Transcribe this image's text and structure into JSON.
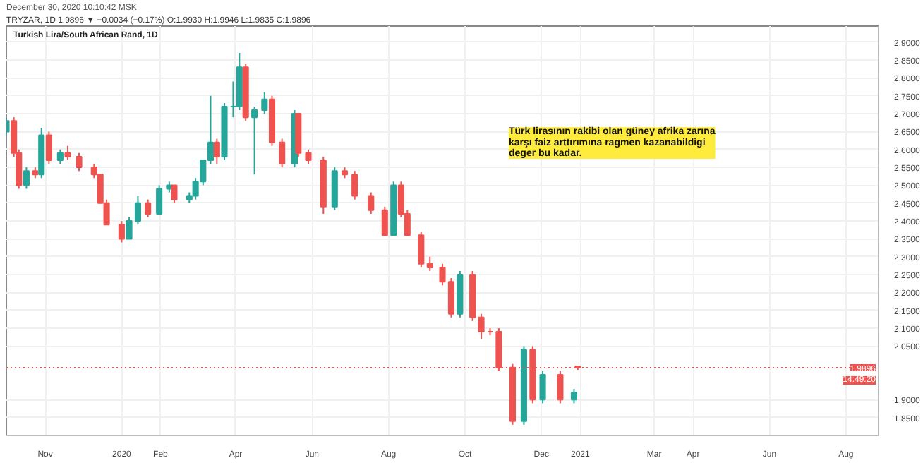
{
  "chart_data": {
    "type": "candlestick",
    "title": "Turkish Lira/South African Rand, 1D",
    "annotations": [
      "December 30, 2020 10:10:42 MSK",
      "TRYZAR, 1D 1.9896 ▼ −0.0034 (−0.17%) O:1.9930 H:1.9946 L:1.9835 C:1.9896",
      "Türk lirasının rakibi olan güney afrika zarına\nkarşı faiz arttırımına ragmen kazanabildigi\ndeger bu kadar.",
      "14:49:20"
    ],
    "x": [
      "2019-10-01",
      "2019-10-07",
      "2019-10-11",
      "2019-10-17",
      "2019-10-24",
      "2019-10-29",
      "2019-11-04",
      "2019-11-13",
      "2019-11-19",
      "2019-11-28",
      "2019-12-10",
      "2019-12-15",
      "2019-12-20",
      "2020-01-01",
      "2020-01-07",
      "2020-01-14",
      "2020-01-22",
      "2020-01-31",
      "2020-02-08",
      "2020-02-12",
      "2020-02-24",
      "2020-02-29",
      "2020-03-06",
      "2020-03-12",
      "2020-03-17",
      "2020-03-23",
      "2020-03-30",
      "2020-04-04",
      "2020-04-09",
      "2020-04-16",
      "2020-04-24",
      "2020-04-30",
      "2020-05-08",
      "2020-05-18",
      "2020-05-21",
      "2020-05-29",
      "2020-06-10",
      "2020-06-19",
      "2020-06-27",
      "2020-07-05",
      "2020-07-18",
      "2020-07-29",
      "2020-08-05",
      "2020-08-11",
      "2020-08-16",
      "2020-08-27",
      "2020-09-03",
      "2020-09-13",
      "2020-09-20",
      "2020-09-27",
      "2020-10-07",
      "2020-10-14",
      "2020-10-21",
      "2020-10-28",
      "2020-11-08",
      "2020-11-17",
      "2020-11-24",
      "2020-12-02",
      "2020-12-16",
      "2020-12-27",
      "2020-12-30"
    ],
    "ohlc": [
      [
        2.65,
        2.69,
        2.64,
        2.68
      ],
      [
        2.68,
        2.69,
        2.58,
        2.59
      ],
      [
        2.59,
        2.6,
        2.49,
        2.5
      ],
      [
        2.5,
        2.55,
        2.49,
        2.54
      ],
      [
        2.54,
        2.55,
        2.52,
        2.53
      ],
      [
        2.53,
        2.66,
        2.52,
        2.64
      ],
      [
        2.64,
        2.65,
        2.56,
        2.57
      ],
      [
        2.57,
        2.6,
        2.56,
        2.59
      ],
      [
        2.59,
        2.61,
        2.57,
        2.58
      ],
      [
        2.58,
        2.59,
        2.54,
        2.55
      ],
      [
        2.55,
        2.56,
        2.52,
        2.53
      ],
      [
        2.53,
        2.53,
        2.45,
        2.45
      ],
      [
        2.45,
        2.46,
        2.39,
        2.39
      ],
      [
        2.39,
        2.4,
        2.34,
        2.35
      ],
      [
        2.35,
        2.41,
        2.35,
        2.4
      ],
      [
        2.4,
        2.47,
        2.39,
        2.45
      ],
      [
        2.45,
        2.46,
        2.41,
        2.42
      ],
      [
        2.42,
        2.5,
        2.42,
        2.49
      ],
      [
        2.49,
        2.51,
        2.48,
        2.5
      ],
      [
        2.5,
        2.5,
        2.45,
        2.46
      ],
      [
        2.46,
        2.48,
        2.45,
        2.47
      ],
      [
        2.47,
        2.52,
        2.46,
        2.51
      ],
      [
        2.51,
        2.57,
        2.5,
        2.57
      ],
      [
        2.57,
        2.75,
        2.56,
        2.62
      ],
      [
        2.62,
        2.63,
        2.56,
        2.58
      ],
      [
        2.58,
        2.73,
        2.57,
        2.72
      ],
      [
        2.72,
        2.79,
        2.69,
        2.72
      ],
      [
        2.72,
        2.87,
        2.71,
        2.83
      ],
      [
        2.83,
        2.84,
        2.68,
        2.69
      ],
      [
        2.69,
        2.72,
        2.53,
        2.71
      ],
      [
        2.71,
        2.76,
        2.7,
        2.74
      ],
      [
        2.74,
        2.75,
        2.61,
        2.62
      ],
      [
        2.62,
        2.63,
        2.55,
        2.56
      ],
      [
        2.56,
        2.71,
        2.55,
        2.7
      ],
      [
        2.7,
        2.7,
        2.58,
        2.59
      ],
      [
        2.59,
        2.6,
        2.56,
        2.57
      ],
      [
        2.57,
        2.58,
        2.42,
        2.44
      ],
      [
        2.44,
        2.55,
        2.43,
        2.54
      ],
      [
        2.54,
        2.55,
        2.52,
        2.53
      ],
      [
        2.53,
        2.54,
        2.46,
        2.47
      ],
      [
        2.47,
        2.48,
        2.42,
        2.43
      ],
      [
        2.43,
        2.44,
        2.36,
        2.36
      ],
      [
        2.36,
        2.51,
        2.36,
        2.5
      ],
      [
        2.5,
        2.51,
        2.41,
        2.42
      ],
      [
        2.42,
        2.43,
        2.36,
        2.36
      ],
      [
        2.36,
        2.37,
        2.27,
        2.28
      ],
      [
        2.28,
        2.3,
        2.26,
        2.27
      ],
      [
        2.27,
        2.28,
        2.22,
        2.23
      ],
      [
        2.23,
        2.24,
        2.13,
        2.14
      ],
      [
        2.14,
        2.26,
        2.13,
        2.25
      ],
      [
        2.25,
        2.26,
        2.12,
        2.13
      ],
      [
        2.13,
        2.14,
        2.07,
        2.09
      ],
      [
        2.09,
        2.1,
        2.08,
        2.09
      ],
      [
        2.09,
        2.1,
        1.98,
        1.99
      ],
      [
        1.99,
        2.0,
        1.83,
        1.84
      ],
      [
        1.84,
        2.05,
        1.83,
        2.04
      ],
      [
        2.04,
        2.05,
        1.89,
        1.9
      ],
      [
        1.9,
        1.98,
        1.89,
        1.97
      ],
      [
        1.97,
        1.98,
        1.89,
        1.9
      ],
      [
        1.9,
        1.93,
        1.89,
        1.92
      ],
      [
        1.993,
        1.9946,
        1.9835,
        1.9896
      ]
    ],
    "colors": [
      "#26a69a",
      "#ef5350",
      "#ef5350",
      "#26a69a",
      "#ef5350",
      "#26a69a",
      "#ef5350",
      "#26a69a",
      "#ef5350",
      "#ef5350",
      "#ef5350",
      "#ef5350",
      "#ef5350",
      "#ef5350",
      "#26a69a",
      "#26a69a",
      "#ef5350",
      "#26a69a",
      "#26a69a",
      "#ef5350",
      "#26a69a",
      "#26a69a",
      "#26a69a",
      "#26a69a",
      "#ef5350",
      "#26a69a",
      "#26a69a",
      "#26a69a",
      "#ef5350",
      "#26a69a",
      "#26a69a",
      "#ef5350",
      "#ef5350",
      "#26a69a",
      "#ef5350",
      "#ef5350",
      "#ef5350",
      "#26a69a",
      "#ef5350",
      "#ef5350",
      "#ef5350",
      "#ef5350",
      "#26a69a",
      "#ef5350",
      "#ef5350",
      "#ef5350",
      "#ef5350",
      "#ef5350",
      "#ef5350",
      "#26a69a",
      "#ef5350",
      "#ef5350",
      "#ef5350",
      "#ef5350",
      "#ef5350",
      "#26a69a",
      "#ef5350",
      "#26a69a",
      "#ef5350",
      "#26a69a",
      "#ef5350"
    ],
    "xlim": [
      "2019-10-01",
      "2021-08-27"
    ],
    "xticks": [
      {
        "value": "2019-11-01",
        "label": "Nov"
      },
      {
        "value": "2020-01-01",
        "label": "2020"
      },
      {
        "value": "2020-02-01",
        "label": "Feb"
      },
      {
        "value": "2020-04-01",
        "label": "Apr"
      },
      {
        "value": "2020-06-01",
        "label": "Jun"
      },
      {
        "value": "2020-08-01",
        "label": "Aug"
      },
      {
        "value": "2020-10-01",
        "label": "Oct"
      },
      {
        "value": "2020-12-01",
        "label": "Dec"
      },
      {
        "value": "2021-01-01",
        "label": "2021"
      },
      {
        "value": "2021-03-01",
        "label": "Mar"
      },
      {
        "value": "2021-04-01",
        "label": "Apr"
      },
      {
        "value": "2021-06-01",
        "label": "Jun"
      },
      {
        "value": "2021-08-01",
        "label": "Aug"
      }
    ],
    "ylim": [
      1.8,
      2.945
    ],
    "yticks": [
      {
        "value": 1.85,
        "label": "1.8500"
      },
      {
        "value": 1.9,
        "label": "1.9000"
      },
      {
        "value": 2.05,
        "label": "2.0500"
      },
      {
        "value": 2.1,
        "label": "2.1000"
      },
      {
        "value": 2.15,
        "label": "2.1500"
      },
      {
        "value": 2.2,
        "label": "2.2000"
      },
      {
        "value": 2.25,
        "label": "2.2500"
      },
      {
        "value": 2.3,
        "label": "2.3000"
      },
      {
        "value": 2.35,
        "label": "2.3500"
      },
      {
        "value": 2.4,
        "label": "2.4000"
      },
      {
        "value": 2.45,
        "label": "2.4500"
      },
      {
        "value": 2.5,
        "label": "2.5000"
      },
      {
        "value": 2.55,
        "label": "2.5500"
      },
      {
        "value": 2.6,
        "label": "2.6000"
      },
      {
        "value": 2.65,
        "label": "2.6500"
      },
      {
        "value": 2.7,
        "label": "2.7000"
      },
      {
        "value": 2.75,
        "label": "2.7500"
      },
      {
        "value": 2.8,
        "label": "2.8000"
      },
      {
        "value": 2.85,
        "label": "2.8500"
      },
      {
        "value": 2.9,
        "label": "2.9000"
      }
    ],
    "ref_lines": [
      {
        "axis": "y",
        "value": 1.9896,
        "label": "1.9896",
        "color": "#ef5350",
        "line_style": "dotted"
      }
    ],
    "grid": true
  }
}
